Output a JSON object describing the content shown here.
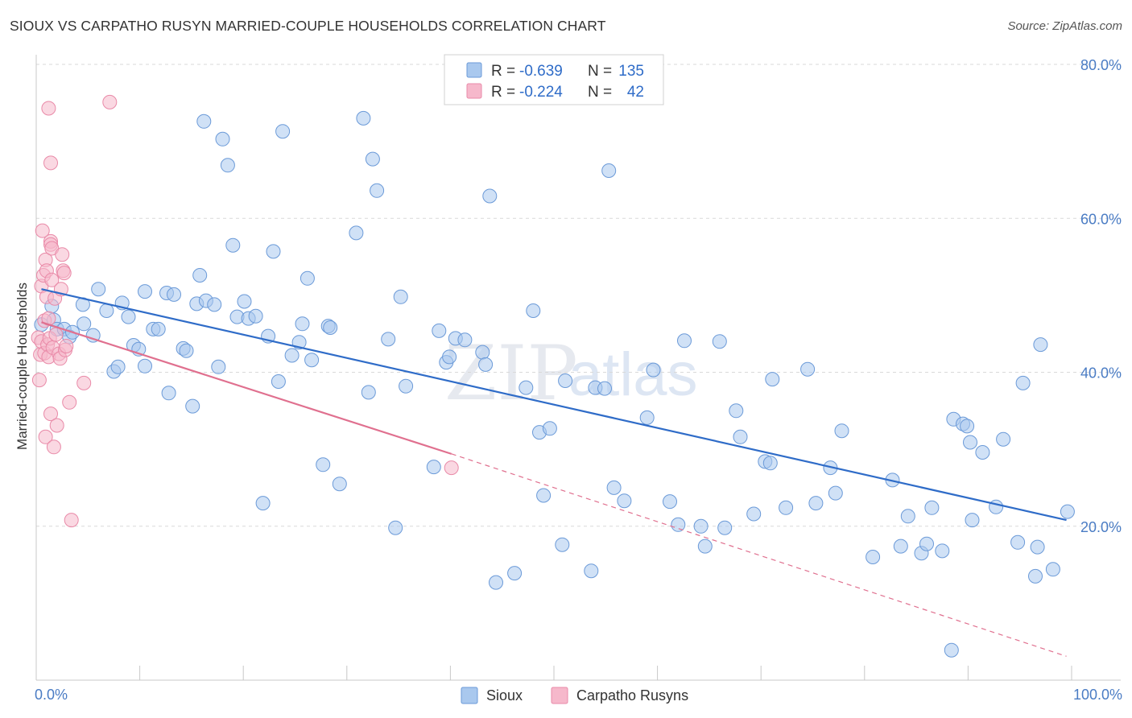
{
  "header": {
    "title": "SIOUX VS CARPATHO RUSYN MARRIED-COUPLE HOUSEHOLDS CORRELATION CHART",
    "source": "Source: ZipAtlas.com"
  },
  "watermark": {
    "zip": "ZIP",
    "atlas": "atlas"
  },
  "colors": {
    "sioux_fill": "#a9c8ee",
    "sioux_stroke": "#6b9ad8",
    "sioux_line": "#2f6cc8",
    "carpatho_fill": "#f6b8cb",
    "carpatho_stroke": "#e98aa8",
    "carpatho_line": "#e0708f",
    "grid": "#d9d9d9",
    "tick_text": "#4a7cc4"
  },
  "legend_top": {
    "rows": [
      {
        "r_label": "R =",
        "r_value": "-0.639",
        "n_label": "N =",
        "n_value": "135"
      },
      {
        "r_label": "R =",
        "r_value": "-0.224",
        "n_label": "N =",
        "n_value": "42"
      }
    ]
  },
  "legend_bottom": {
    "items": [
      "Sioux",
      "Carpatho Rusyns"
    ]
  },
  "chart_data": {
    "type": "scatter",
    "title": "SIOUX VS CARPATHO RUSYN MARRIED-COUPLE HOUSEHOLDS CORRELATION CHART",
    "xlabel": "",
    "ylabel": "Married-couple Households",
    "xlim": [
      0,
      100
    ],
    "ylim": [
      0,
      80
    ],
    "x_tick_labels": [
      "0.0%",
      "100.0%"
    ],
    "y_tick_values": [
      20,
      40,
      60,
      80
    ],
    "y_tick_labels": [
      "20.0%",
      "40.0%",
      "60.0%",
      "80.0%"
    ],
    "grid": true,
    "series": [
      {
        "name": "Sioux",
        "r": -0.639,
        "n": 135,
        "trend": {
          "x": [
            0.5,
            99.5
          ],
          "y": [
            50.8,
            20.8
          ]
        },
        "points": [
          [
            0.5,
            46.2
          ],
          [
            1.5,
            48.6
          ],
          [
            1.7,
            46.8
          ],
          [
            2.0,
            45.6
          ],
          [
            2.7,
            45.6
          ],
          [
            3.2,
            44.6
          ],
          [
            3.5,
            45.2
          ],
          [
            4.5,
            48.8
          ],
          [
            4.6,
            46.3
          ],
          [
            5.5,
            44.8
          ],
          [
            6.0,
            50.8
          ],
          [
            6.8,
            48.0
          ],
          [
            7.5,
            40.1
          ],
          [
            7.9,
            40.7
          ],
          [
            8.3,
            49.0
          ],
          [
            8.9,
            47.2
          ],
          [
            9.4,
            43.5
          ],
          [
            9.9,
            43.0
          ],
          [
            10.5,
            50.5
          ],
          [
            10.5,
            40.8
          ],
          [
            11.3,
            45.6
          ],
          [
            11.8,
            45.6
          ],
          [
            12.6,
            50.3
          ],
          [
            12.8,
            37.3
          ],
          [
            13.3,
            50.1
          ],
          [
            14.2,
            43.1
          ],
          [
            14.5,
            42.8
          ],
          [
            15.1,
            35.6
          ],
          [
            15.5,
            48.9
          ],
          [
            15.8,
            52.6
          ],
          [
            16.2,
            72.6
          ],
          [
            16.4,
            49.3
          ],
          [
            17.2,
            48.8
          ],
          [
            17.6,
            40.7
          ],
          [
            18.0,
            70.3
          ],
          [
            18.5,
            66.9
          ],
          [
            19.0,
            56.5
          ],
          [
            19.4,
            47.2
          ],
          [
            20.1,
            49.2
          ],
          [
            20.5,
            47.0
          ],
          [
            21.2,
            47.3
          ],
          [
            21.9,
            23.0
          ],
          [
            22.4,
            44.7
          ],
          [
            22.9,
            55.7
          ],
          [
            23.4,
            38.8
          ],
          [
            23.8,
            71.3
          ],
          [
            24.7,
            42.2
          ],
          [
            25.4,
            43.9
          ],
          [
            25.7,
            46.3
          ],
          [
            26.2,
            52.2
          ],
          [
            26.6,
            41.6
          ],
          [
            27.7,
            28.0
          ],
          [
            28.2,
            46.0
          ],
          [
            28.4,
            45.8
          ],
          [
            29.3,
            25.5
          ],
          [
            30.9,
            58.1
          ],
          [
            31.6,
            73.0
          ],
          [
            32.1,
            37.4
          ],
          [
            32.5,
            67.7
          ],
          [
            32.9,
            63.6
          ],
          [
            34.0,
            44.3
          ],
          [
            34.7,
            19.8
          ],
          [
            35.2,
            49.8
          ],
          [
            35.7,
            38.2
          ],
          [
            38.4,
            27.7
          ],
          [
            38.9,
            45.4
          ],
          [
            39.6,
            41.3
          ],
          [
            39.9,
            42.0
          ],
          [
            40.5,
            44.4
          ],
          [
            41.4,
            44.2
          ],
          [
            43.1,
            42.6
          ],
          [
            43.4,
            41.0
          ],
          [
            43.8,
            62.9
          ],
          [
            44.4,
            12.7
          ],
          [
            46.2,
            13.9
          ],
          [
            47.3,
            38.0
          ],
          [
            48.0,
            48.0
          ],
          [
            48.6,
            32.2
          ],
          [
            49.0,
            24.0
          ],
          [
            49.6,
            32.7
          ],
          [
            50.8,
            17.6
          ],
          [
            51.1,
            38.9
          ],
          [
            53.6,
            14.2
          ],
          [
            54.0,
            38.0
          ],
          [
            54.9,
            37.9
          ],
          [
            55.3,
            66.2
          ],
          [
            55.8,
            25.0
          ],
          [
            56.8,
            23.3
          ],
          [
            59.0,
            34.1
          ],
          [
            59.6,
            40.3
          ],
          [
            61.2,
            23.2
          ],
          [
            62.0,
            20.2
          ],
          [
            62.6,
            44.1
          ],
          [
            64.2,
            20.0
          ],
          [
            64.6,
            17.4
          ],
          [
            66.0,
            44.0
          ],
          [
            66.5,
            19.8
          ],
          [
            67.6,
            35.0
          ],
          [
            68.0,
            31.6
          ],
          [
            69.3,
            21.6
          ],
          [
            70.4,
            28.4
          ],
          [
            70.9,
            28.2
          ],
          [
            71.1,
            39.1
          ],
          [
            72.4,
            22.4
          ],
          [
            74.5,
            40.4
          ],
          [
            75.3,
            23.0
          ],
          [
            76.7,
            27.6
          ],
          [
            77.2,
            24.3
          ],
          [
            77.8,
            32.4
          ],
          [
            80.8,
            16.0
          ],
          [
            82.7,
            26.0
          ],
          [
            83.5,
            17.4
          ],
          [
            84.2,
            21.3
          ],
          [
            85.5,
            16.5
          ],
          [
            86.0,
            17.7
          ],
          [
            86.5,
            22.4
          ],
          [
            87.5,
            16.8
          ],
          [
            88.4,
            3.9
          ],
          [
            88.6,
            33.9
          ],
          [
            89.5,
            33.3
          ],
          [
            89.9,
            33.0
          ],
          [
            90.2,
            30.9
          ],
          [
            90.4,
            20.8
          ],
          [
            91.4,
            29.6
          ],
          [
            92.7,
            22.5
          ],
          [
            93.4,
            31.3
          ],
          [
            94.8,
            17.9
          ],
          [
            95.3,
            38.6
          ],
          [
            96.5,
            13.5
          ],
          [
            96.7,
            17.3
          ],
          [
            97.0,
            43.6
          ],
          [
            98.2,
            14.4
          ],
          [
            99.6,
            21.9
          ]
        ]
      },
      {
        "name": "Carpatho Rusyns",
        "r": -0.224,
        "n": 42,
        "trend": {
          "x": [
            0.5,
            40.1
          ],
          "y": [
            46.5,
            29.4
          ]
        },
        "trend_extension": {
          "x": [
            40.1,
            99.5
          ],
          "y": [
            29.4,
            3.1
          ]
        },
        "points": [
          [
            0.2,
            44.5
          ],
          [
            0.3,
            39.0
          ],
          [
            0.4,
            42.3
          ],
          [
            0.5,
            51.2
          ],
          [
            0.5,
            44.0
          ],
          [
            0.6,
            58.4
          ],
          [
            0.7,
            52.6
          ],
          [
            0.8,
            46.7
          ],
          [
            0.8,
            42.5
          ],
          [
            0.9,
            54.6
          ],
          [
            0.9,
            31.6
          ],
          [
            1.0,
            53.2
          ],
          [
            1.0,
            49.8
          ],
          [
            1.1,
            43.6
          ],
          [
            1.2,
            47.0
          ],
          [
            1.2,
            42.0
          ],
          [
            1.3,
            44.4
          ],
          [
            1.4,
            57.0
          ],
          [
            1.4,
            56.6
          ],
          [
            1.4,
            34.6
          ],
          [
            1.5,
            56.1
          ],
          [
            1.5,
            52.0
          ],
          [
            1.6,
            43.2
          ],
          [
            1.7,
            30.3
          ],
          [
            1.8,
            49.6
          ],
          [
            1.9,
            44.9
          ],
          [
            2.0,
            33.1
          ],
          [
            2.2,
            42.4
          ],
          [
            2.3,
            41.8
          ],
          [
            2.4,
            50.8
          ],
          [
            2.5,
            55.3
          ],
          [
            2.6,
            53.2
          ],
          [
            2.7,
            52.9
          ],
          [
            2.8,
            42.9
          ],
          [
            2.9,
            43.4
          ],
          [
            3.2,
            36.1
          ],
          [
            3.4,
            20.8
          ],
          [
            4.6,
            38.6
          ],
          [
            7.1,
            75.1
          ],
          [
            1.2,
            74.3
          ],
          [
            1.4,
            67.2
          ],
          [
            40.1,
            27.6
          ]
        ]
      }
    ]
  }
}
